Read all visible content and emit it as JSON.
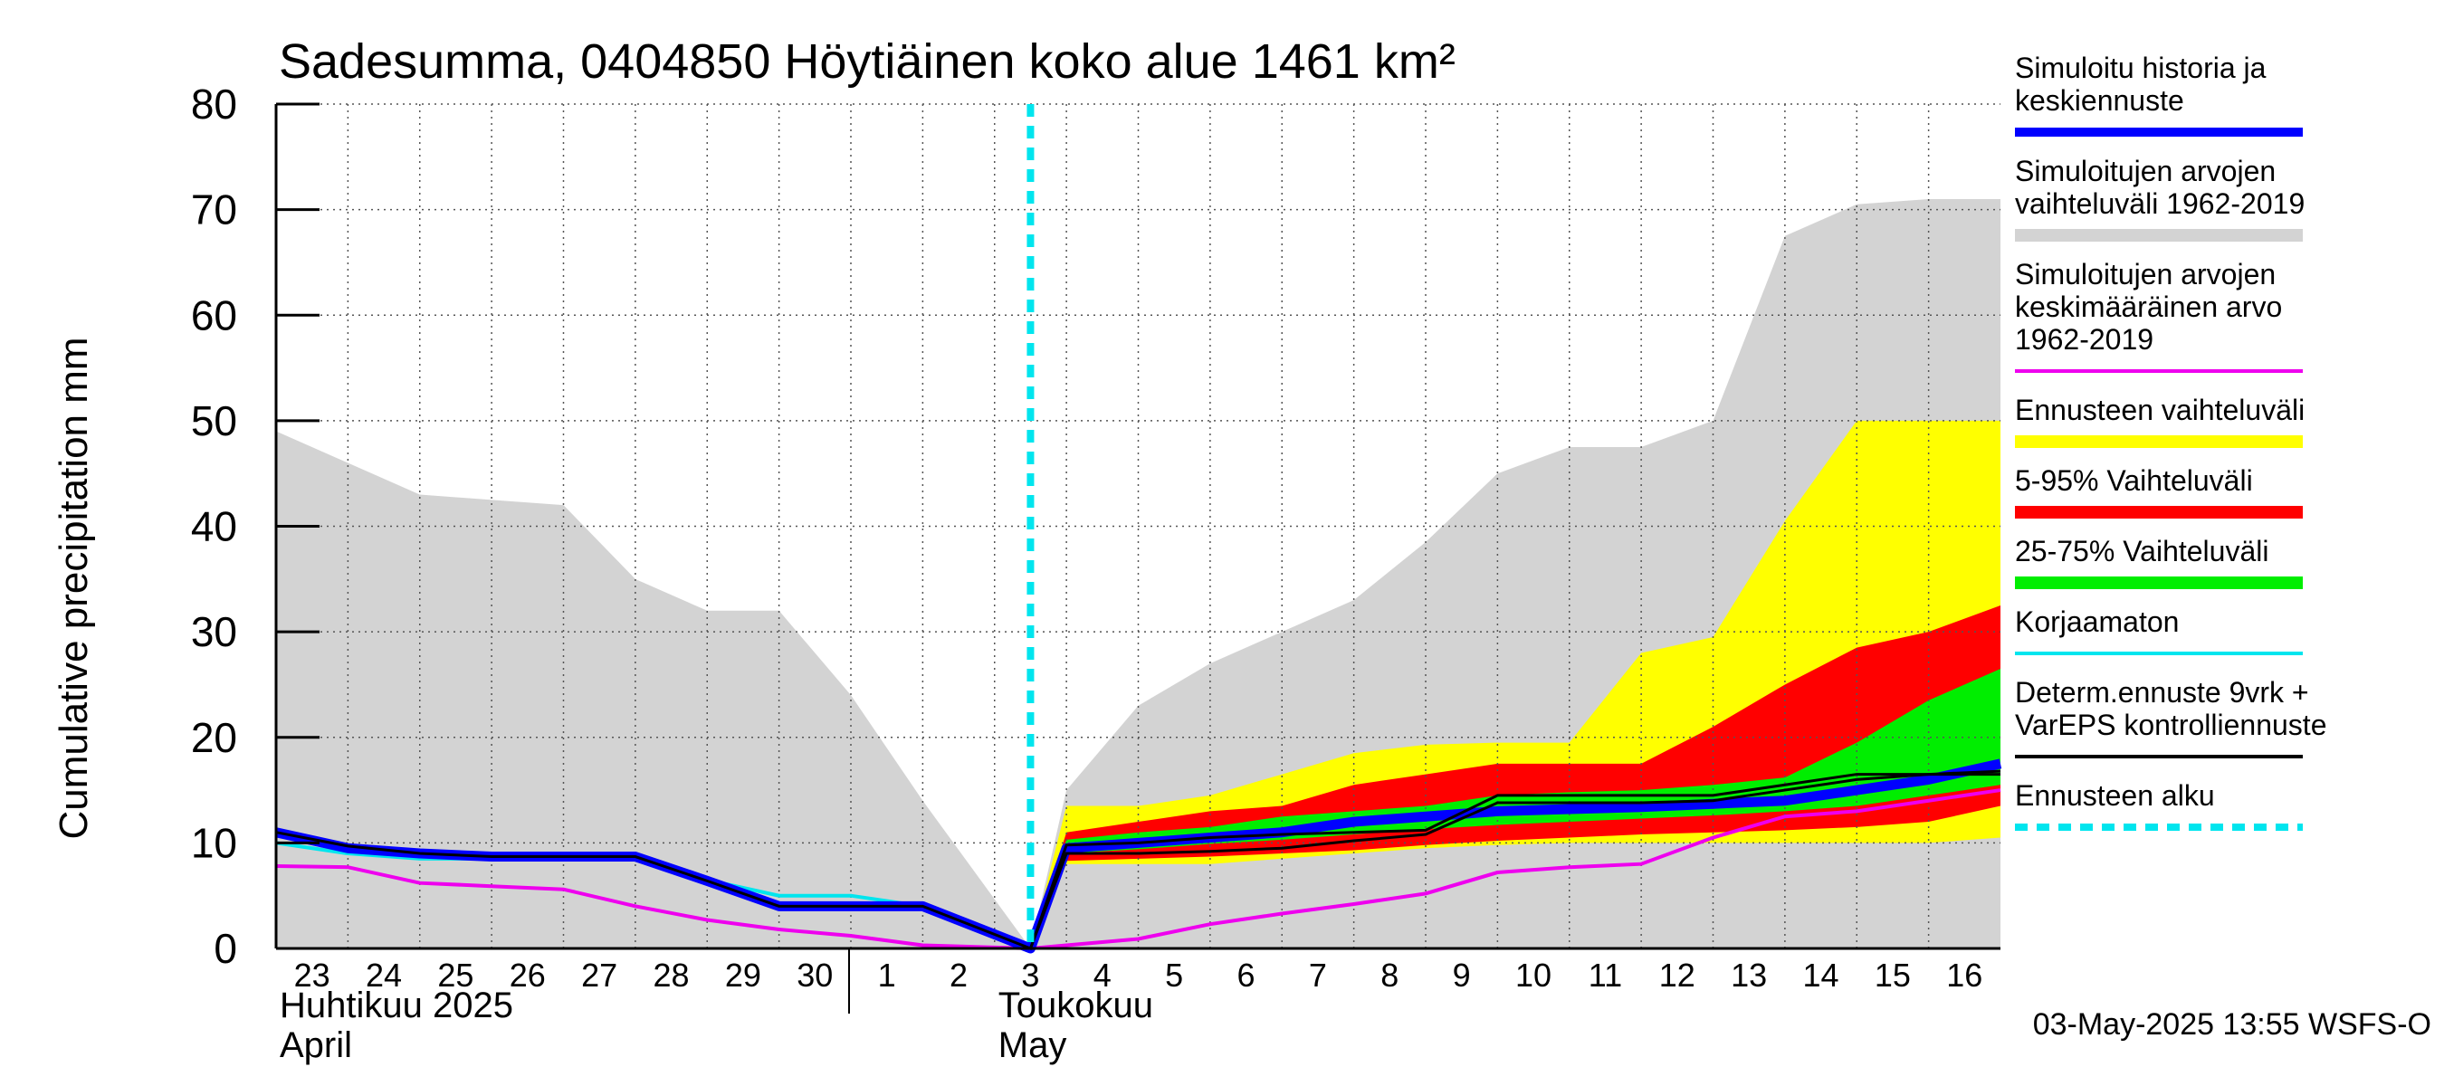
{
  "chart_data": {
    "type": "area",
    "title": "Sadesumma, 0404850 Höytiäinen koko alue 1461 km²",
    "ylabel": "Cumulative precipitation   mm",
    "ylim": [
      0,
      80
    ],
    "yticks": [
      0,
      10,
      20,
      30,
      40,
      50,
      60,
      70,
      80
    ],
    "x_labels": [
      "23",
      "24",
      "25",
      "26",
      "27",
      "28",
      "29",
      "30",
      "1",
      "2",
      "3",
      "4",
      "5",
      "6",
      "7",
      "8",
      "9",
      "10",
      "11",
      "12",
      "13",
      "14",
      "15",
      "16"
    ],
    "month_labels": [
      {
        "line1": "Huhtikuu  2025",
        "line2": "April"
      },
      {
        "line1": "Toukokuu",
        "line2": "May"
      }
    ],
    "forecast_start_day": 10.5,
    "grid": true,
    "legend_position": "right",
    "colors": {
      "sim_history": "#0000ff",
      "sim_range": "#d3d3d3",
      "sim_mean": "#ee00ee",
      "forecast_range": "#ffff00",
      "range_5_95": "#ff0000",
      "range_25_75": "#00ee00",
      "uncorrected": "#00e5ee",
      "determ": "#000000",
      "forecast_start": "#00e5ee"
    },
    "series": {
      "sim_range": {
        "x": [
          0,
          1,
          2,
          3,
          4,
          5,
          6,
          7,
          8,
          9,
          10.5,
          11,
          12,
          13,
          14,
          15,
          16,
          17,
          18,
          19,
          20,
          21,
          22,
          23,
          24
        ],
        "upper": [
          49,
          46,
          43,
          42.5,
          42,
          35,
          32,
          32,
          24,
          14,
          0,
          15,
          23,
          27,
          30,
          33,
          38.5,
          45,
          47.5,
          47.5,
          50,
          67.5,
          70.5,
          71,
          71
        ],
        "lower": [
          0,
          0,
          0,
          0,
          0,
          0,
          0,
          0,
          0,
          0,
          0,
          0,
          0,
          0,
          0,
          0,
          0,
          0,
          0,
          0,
          0,
          0,
          0,
          0,
          0
        ]
      },
      "forecast_range": {
        "x": [
          10.5,
          11,
          12,
          13,
          14,
          15,
          16,
          17,
          18,
          19,
          20,
          21,
          22,
          23,
          24
        ],
        "upper": [
          0,
          13.5,
          13.5,
          14.5,
          16.5,
          18.5,
          19.3,
          19.5,
          19.5,
          28,
          29.5,
          40.5,
          50,
          50,
          50
        ],
        "lower": [
          0,
          8,
          8,
          8,
          8.5,
          9,
          9.5,
          9.8,
          10,
          10,
          10,
          10,
          10,
          10,
          10.5
        ]
      },
      "range_5_95": {
        "x": [
          10.5,
          11,
          12,
          13,
          14,
          15,
          16,
          17,
          18,
          19,
          20,
          21,
          22,
          23,
          24
        ],
        "upper": [
          0,
          11,
          12,
          13,
          13.5,
          15.5,
          16.5,
          17.5,
          17.5,
          17.5,
          21,
          25,
          28.5,
          30,
          32.5
        ],
        "lower": [
          0,
          8.3,
          8.5,
          8.7,
          9,
          9.3,
          9.8,
          10.2,
          10.5,
          10.8,
          11,
          11.2,
          11.5,
          12,
          13.5
        ]
      },
      "range_25_75": {
        "x": [
          10.5,
          11,
          12,
          13,
          14,
          15,
          16,
          17,
          18,
          19,
          20,
          21,
          22,
          23,
          24
        ],
        "upper": [
          0,
          10.3,
          11,
          11.5,
          12.5,
          13,
          13.5,
          14.5,
          14.8,
          15,
          15.5,
          16.2,
          19.5,
          23.5,
          26.5
        ],
        "lower": [
          0,
          9,
          9.4,
          9.9,
          10.3,
          10.8,
          11.3,
          11.7,
          12,
          12.3,
          12.6,
          13,
          13.5,
          14.5,
          15.5
        ]
      },
      "sim_mean": {
        "x": [
          0,
          1,
          2,
          3,
          4,
          5,
          6,
          7,
          8,
          9,
          10.5,
          11,
          12,
          13,
          14,
          15,
          16,
          17,
          18,
          19,
          20,
          21,
          22,
          23,
          24
        ],
        "y": [
          7.8,
          7.7,
          6.2,
          5.9,
          5.6,
          4,
          2.7,
          1.8,
          1.2,
          0.3,
          0,
          0.3,
          0.9,
          2.3,
          3.3,
          4.2,
          5.2,
          7.2,
          7.7,
          8,
          10.5,
          12.5,
          13,
          14,
          15
        ]
      },
      "uncorrected": {
        "x": [
          0,
          1,
          2,
          3,
          4,
          5,
          6,
          7,
          8,
          9,
          10.5
        ],
        "y": [
          10,
          9,
          8.5,
          8.5,
          8.5,
          8.5,
          6.5,
          5,
          5,
          4,
          0
        ]
      },
      "sim_history": {
        "x": [
          0,
          1,
          2,
          3,
          4,
          5,
          6,
          7,
          8,
          9,
          10.5,
          11,
          12,
          13,
          14,
          15,
          16,
          17,
          18,
          19,
          20,
          21,
          22,
          23,
          24
        ],
        "y": [
          11,
          9.5,
          9,
          8.7,
          8.7,
          8.7,
          6.4,
          4,
          4,
          4,
          0,
          9.5,
          10,
          10.5,
          11,
          12,
          12.5,
          13,
          13.2,
          13.4,
          13.7,
          14,
          15,
          16,
          17.5
        ]
      },
      "determ": [
        {
          "x": [
            0,
            1,
            2,
            3,
            4,
            5,
            6,
            7,
            8,
            9,
            10.5,
            11,
            12,
            13,
            14,
            15,
            16,
            17,
            18,
            19,
            20,
            21,
            22,
            23,
            24
          ],
          "y": [
            11,
            9.7,
            9,
            8.7,
            8.7,
            8.7,
            6.4,
            4,
            4,
            4,
            0,
            9.8,
            10,
            10.5,
            10.8,
            11,
            11.2,
            14.5,
            14.5,
            14.5,
            14.5,
            15.5,
            16.5,
            16.5,
            16.5
          ]
        },
        {
          "x": [
            10.5,
            11,
            12,
            13,
            14,
            15,
            16,
            17,
            18,
            19,
            20,
            21,
            22,
            23,
            24
          ],
          "y": [
            0,
            9,
            9,
            9.2,
            9.5,
            10.2,
            10.8,
            13.8,
            13.8,
            13.8,
            14,
            15,
            16,
            16.5,
            16.8
          ]
        }
      ]
    },
    "legend": [
      {
        "key": "sim_history",
        "lines": [
          "Simuloitu historia ja",
          "keskiennuste"
        ],
        "style": "line-thick"
      },
      {
        "key": "sim_range",
        "lines": [
          "Simuloitujen arvojen",
          "vaihteluväli 1962-2019"
        ],
        "style": "band"
      },
      {
        "key": "sim_mean",
        "lines": [
          "Simuloitujen arvojen",
          "keskimääräinen arvo",
          "   1962-2019"
        ],
        "style": "line"
      },
      {
        "key": "forecast_range",
        "lines": [
          "Ennusteen vaihteluväli"
        ],
        "style": "band"
      },
      {
        "key": "range_5_95",
        "lines": [
          "5-95% Vaihteluväli"
        ],
        "style": "band"
      },
      {
        "key": "range_25_75",
        "lines": [
          "25-75% Vaihteluväli"
        ],
        "style": "band"
      },
      {
        "key": "uncorrected",
        "lines": [
          "Korjaamaton"
        ],
        "style": "line"
      },
      {
        "key": "determ",
        "lines": [
          "Determ.ennuste 9vrk +",
          "VarEPS kontrolliennuste"
        ],
        "style": "line"
      },
      {
        "key": "forecast_start",
        "lines": [
          "Ennusteen alku"
        ],
        "style": "dashed"
      }
    ]
  },
  "timestamp": "03-May-2025 13:55 WSFS-O"
}
